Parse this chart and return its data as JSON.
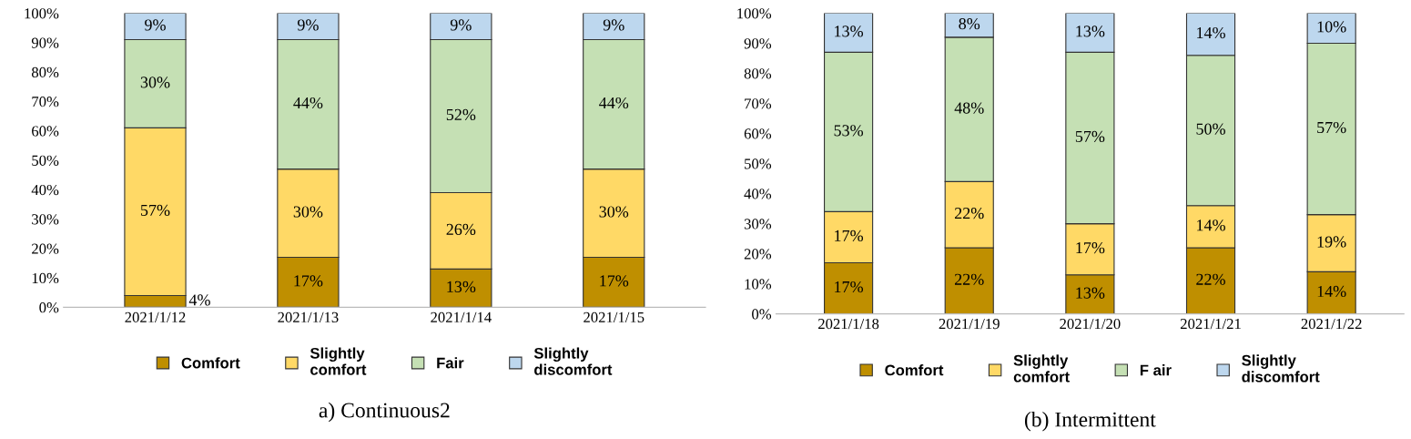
{
  "chart_data": [
    {
      "type": "bar",
      "stacked": true,
      "title": "a) Continuous2",
      "categories": [
        "2021/1/12",
        "2021/1/13",
        "2021/1/14",
        "2021/1/15"
      ],
      "legend": "bottom",
      "ylim": [
        0,
        100
      ],
      "yticks": [
        {
          "value": 0,
          "label": "0%"
        },
        {
          "value": 10,
          "label": "10%"
        },
        {
          "value": 20,
          "label": "20%"
        },
        {
          "value": 30,
          "label": "30%"
        },
        {
          "value": 40,
          "label": "40%"
        },
        {
          "value": 50,
          "label": "50%"
        },
        {
          "value": 60,
          "label": "60%"
        },
        {
          "value": 70,
          "label": "70%"
        },
        {
          "value": 80,
          "label": "80%"
        },
        {
          "value": 90,
          "label": "90%"
        },
        {
          "value": 100,
          "label": "100%"
        }
      ],
      "series": [
        {
          "name": "Comfort",
          "color": "#bf8f00",
          "values": [
            4,
            17,
            13,
            17
          ],
          "value_labels": [
            "4%",
            "17%",
            "13%",
            "17%"
          ]
        },
        {
          "name": "Slightly\ncomfort",
          "color": "#ffd966",
          "values": [
            57,
            30,
            26,
            30
          ],
          "value_labels": [
            "57%",
            "30%",
            "26%",
            "30%"
          ]
        },
        {
          "name": "Fair",
          "color": "#c5e0b4",
          "values": [
            30,
            44,
            52,
            44
          ],
          "value_labels": [
            "30%",
            "44%",
            "52%",
            "44%"
          ]
        },
        {
          "name": "Slightly\ndiscomfort",
          "color": "#bdd7ee",
          "values": [
            9,
            9,
            9,
            9
          ],
          "value_labels": [
            "9%",
            "9%",
            "9%",
            "9%"
          ]
        }
      ]
    },
    {
      "type": "bar",
      "stacked": true,
      "title": "(b) Intermittent",
      "categories": [
        "2021/1/18",
        "2021/1/19",
        "2021/1/20",
        "2021/1/21",
        "2021/1/22"
      ],
      "legend": "bottom",
      "ylim": [
        0,
        100
      ],
      "yticks": [
        {
          "value": 0,
          "label": "0%"
        },
        {
          "value": 10,
          "label": "10%"
        },
        {
          "value": 20,
          "label": "20%"
        },
        {
          "value": 30,
          "label": "30%"
        },
        {
          "value": 40,
          "label": "40%"
        },
        {
          "value": 50,
          "label": "50%"
        },
        {
          "value": 60,
          "label": "60%"
        },
        {
          "value": 70,
          "label": "70%"
        },
        {
          "value": 80,
          "label": "80%"
        },
        {
          "value": 90,
          "label": "90%"
        },
        {
          "value": 100,
          "label": "100%"
        }
      ],
      "series": [
        {
          "name": "Comfort",
          "color": "#bf8f00",
          "values": [
            17,
            22,
            13,
            22,
            14
          ],
          "value_labels": [
            "17%",
            "22%",
            "13%",
            "22%",
            "14%"
          ]
        },
        {
          "name": "Slightly\ncomfort",
          "color": "#ffd966",
          "values": [
            17,
            22,
            17,
            14,
            19
          ],
          "value_labels": [
            "17%",
            "22%",
            "17%",
            "14%",
            "19%"
          ]
        },
        {
          "name": "F air",
          "color": "#c5e0b4",
          "values": [
            53,
            48,
            57,
            50,
            57
          ],
          "value_labels": [
            "53%",
            "48%",
            "57%",
            "50%",
            "57%"
          ]
        },
        {
          "name": "Slightly\ndiscomfort",
          "color": "#bdd7ee",
          "values": [
            13,
            8,
            13,
            14,
            10
          ],
          "value_labels": [
            "13%",
            "8%",
            "13%",
            "14%",
            "10%"
          ]
        }
      ]
    }
  ]
}
